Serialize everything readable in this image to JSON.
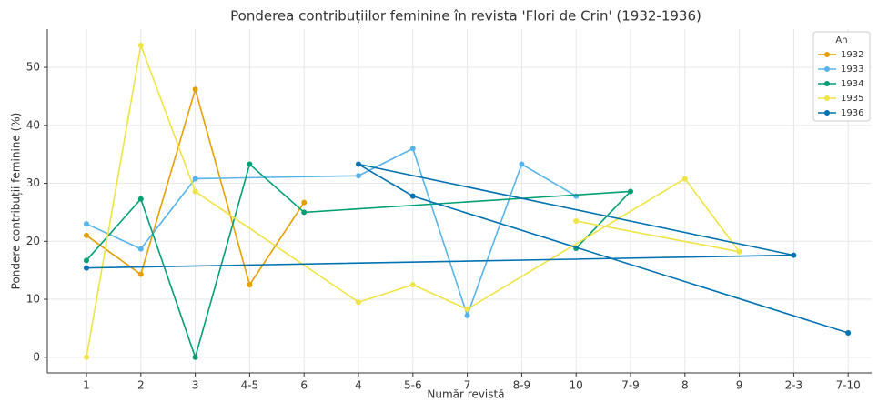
{
  "chart_data": {
    "type": "line",
    "title": "Ponderea contribuțiilor feminine în revista 'Flori de Crin' (1932-1936)",
    "x_label": "Număr revistă",
    "y_label": "Pondere contribuții feminine (%)",
    "categories": [
      "1",
      "2",
      "3",
      "4-5",
      "6",
      "4",
      "5-6",
      "7",
      "8-9",
      "10",
      "7-9",
      "8",
      "9",
      "2-3",
      "7-10"
    ],
    "ylim": [
      -2.7,
      56.6
    ],
    "yticks": [
      0,
      10,
      20,
      30,
      40,
      50
    ],
    "grid": true,
    "legend_title": "An",
    "legend_position": "upper right",
    "series": [
      {
        "name": "1932",
        "color": "#e69f00",
        "x": [
          "1",
          "2",
          "3",
          "4-5",
          "6"
        ],
        "values": [
          21,
          14.3,
          46.2,
          12.5,
          26.7
        ]
      },
      {
        "name": "1933",
        "color": "#56b4e9",
        "x": [
          "1",
          "2",
          "3",
          "4",
          "5-6",
          "7",
          "8-9",
          "10"
        ],
        "values": [
          23,
          18.7,
          30.8,
          31.3,
          36,
          7.2,
          33.3,
          27.8
        ]
      },
      {
        "name": "1934",
        "color": "#009e73",
        "x": [
          "1",
          "2",
          "3",
          "4-5",
          "6",
          "7-9",
          "10"
        ],
        "values": [
          16.7,
          27.3,
          0,
          33.3,
          25,
          28.6,
          18.8
        ]
      },
      {
        "name": "1935",
        "color": "#f0e442",
        "x": [
          "1",
          "2",
          "3",
          "4",
          "5-6",
          "7",
          "8",
          "9",
          "10"
        ],
        "values": [
          0,
          53.8,
          28.6,
          9.5,
          12.5,
          8.3,
          30.8,
          18.2,
          23.5
        ]
      },
      {
        "name": "1936",
        "color": "#0072b2",
        "x": [
          "1",
          "2-3",
          "4",
          "5-6",
          "7-10"
        ],
        "values": [
          15.4,
          17.6,
          33.3,
          27.8,
          4.2
        ]
      }
    ]
  }
}
